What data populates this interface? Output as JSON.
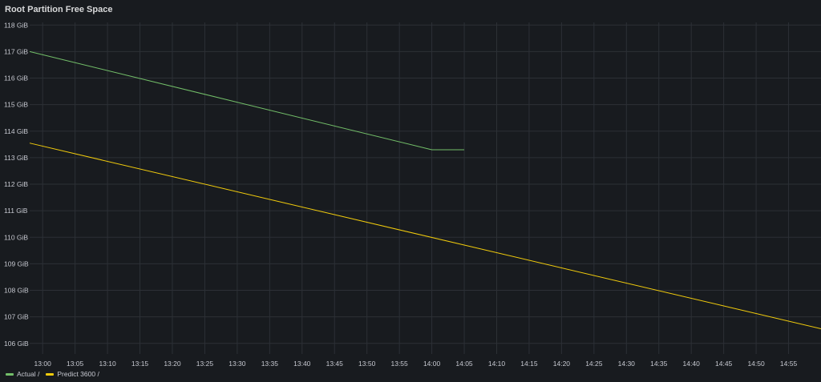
{
  "panel": {
    "title": "Root Partition Free Space"
  },
  "colors": {
    "background": "#181b1f",
    "grid": "#2c3036",
    "text": "#c7c9d1"
  },
  "chart_data": {
    "type": "line",
    "title": "Root Partition Free Space",
    "xlabel": "",
    "ylabel": "",
    "x_ticks": [
      "13:00",
      "13:05",
      "13:10",
      "13:15",
      "13:20",
      "13:25",
      "13:30",
      "13:35",
      "13:40",
      "13:45",
      "13:50",
      "13:55",
      "14:00",
      "14:05",
      "14:10",
      "14:15",
      "14:20",
      "14:25",
      "14:30",
      "14:35",
      "14:40",
      "14:45",
      "14:50",
      "14:55"
    ],
    "y_ticks": [
      "106 GiB",
      "107 GiB",
      "108 GiB",
      "109 GiB",
      "110 GiB",
      "111 GiB",
      "112 GiB",
      "113 GiB",
      "114 GiB",
      "115 GiB",
      "116 GiB",
      "117 GiB",
      "118 GiB"
    ],
    "xlim": [
      "12:58",
      "15:00"
    ],
    "ylim": [
      105.6,
      118.1
    ],
    "y_unit": "GiB",
    "grid": true,
    "legend_position": "bottom-left",
    "series": [
      {
        "name": "Actual /",
        "color": "#73bf69",
        "x": [
          "12:58",
          "14:00",
          "14:05"
        ],
        "y": [
          117.0,
          113.3,
          113.3
        ]
      },
      {
        "name": "Predict 3600 /",
        "color": "#f2cc0c",
        "x": [
          "12:58",
          "15:00"
        ],
        "y": [
          113.55,
          106.55
        ]
      }
    ]
  }
}
